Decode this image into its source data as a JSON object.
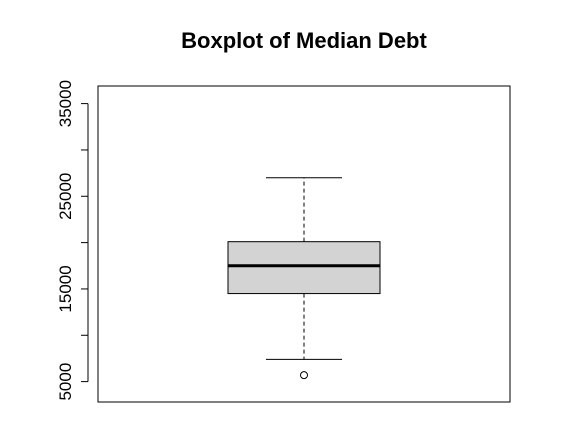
{
  "chart_data": {
    "type": "boxplot",
    "title": "Boxplot of Median Debt",
    "xlabel": "",
    "ylabel": "",
    "ylim": [
      2800,
      36900
    ],
    "y_ticks": [
      5000,
      10000,
      15000,
      20000,
      25000,
      30000,
      35000
    ],
    "y_tick_labels": [
      "5000",
      "",
      "15000",
      "",
      "25000",
      "",
      "35000"
    ],
    "box": {
      "lower_whisker": 7400,
      "q1": 14500,
      "median": 17500,
      "q3": 20100,
      "upper_whisker": 27000
    },
    "outliers": [
      5700
    ],
    "box_fill": "#d3d3d3",
    "grid": false
  }
}
